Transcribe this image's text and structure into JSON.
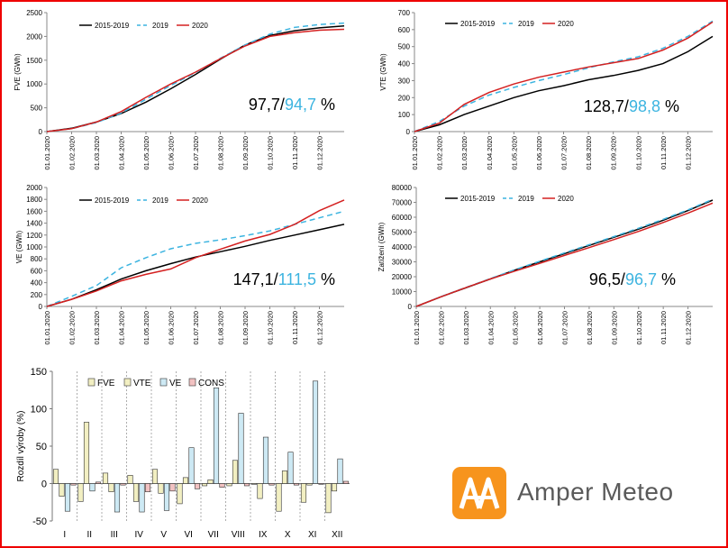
{
  "colors": {
    "base": "#000000",
    "y2019": "#3cb4e0",
    "y2020": "#d42020",
    "frame": "#ee0000",
    "logo_orange": "#f7941d",
    "logo_text": "#5a5a5a"
  },
  "date_ticks": [
    "01.01.2020",
    "01.02.2020",
    "01.03.2020",
    "01.04.2020",
    "01.05.2020",
    "01.06.2020",
    "01.07.2020",
    "01.08.2020",
    "01.09.2020",
    "01.10.2020",
    "01.11.2020",
    "01.12.2020"
  ],
  "legend": {
    "base": "2015-2019",
    "y2019": "2019",
    "y2020": "2020"
  },
  "logo": {
    "name": "Amper Meteo",
    "icon": "amper-meteo-logo-icon"
  },
  "chart_data": [
    {
      "id": "fve",
      "type": "line",
      "ylabel": "FVE (GWh)",
      "ylim": [
        0,
        2500
      ],
      "ystep": 500,
      "x": [
        0,
        1,
        2,
        3,
        4,
        5,
        6,
        7,
        8,
        9,
        10,
        11,
        12
      ],
      "series": [
        {
          "name": "2015-2019",
          "values": [
            0,
            70,
            200,
            380,
            620,
            900,
            1200,
            1520,
            1820,
            2020,
            2120,
            2180,
            2220
          ]
        },
        {
          "name": "2019",
          "values": [
            0,
            60,
            190,
            390,
            680,
            970,
            1240,
            1540,
            1820,
            2050,
            2190,
            2250,
            2280
          ]
        },
        {
          "name": "2020",
          "values": [
            0,
            60,
            200,
            420,
            720,
            1000,
            1250,
            1530,
            1800,
            2000,
            2080,
            2130,
            2150
          ]
        }
      ],
      "annotation": {
        "main": "97,7/",
        "accent": "94,7",
        "suffix": " %"
      }
    },
    {
      "id": "vte",
      "type": "line",
      "ylabel": "VTE (GWh)",
      "ylim": [
        0,
        700
      ],
      "ystep": 100,
      "x": [
        0,
        1,
        2,
        3,
        4,
        5,
        6,
        7,
        8,
        9,
        10,
        11,
        12
      ],
      "series": [
        {
          "name": "2015-2019",
          "values": [
            0,
            40,
            100,
            150,
            200,
            240,
            270,
            305,
            330,
            360,
            400,
            470,
            560
          ]
        },
        {
          "name": "2019",
          "values": [
            0,
            60,
            150,
            215,
            260,
            300,
            335,
            375,
            410,
            440,
            490,
            560,
            650
          ]
        },
        {
          "name": "2020",
          "values": [
            0,
            50,
            160,
            230,
            280,
            320,
            350,
            380,
            405,
            430,
            480,
            550,
            645
          ]
        }
      ],
      "annotation": {
        "main": "128,7/",
        "accent": "98,8",
        "suffix": " %"
      }
    },
    {
      "id": "ve",
      "type": "line",
      "ylabel": "VE (GWh)",
      "ylim": [
        0,
        2000
      ],
      "ystep": 200,
      "x": [
        0,
        1,
        2,
        3,
        4,
        5,
        6,
        7,
        8,
        9,
        10,
        11,
        12
      ],
      "series": [
        {
          "name": "2015-2019",
          "values": [
            0,
            120,
            280,
            460,
            600,
            720,
            830,
            920,
            1010,
            1110,
            1200,
            1290,
            1380
          ]
        },
        {
          "name": "2019",
          "values": [
            0,
            170,
            350,
            650,
            820,
            970,
            1060,
            1120,
            1190,
            1270,
            1380,
            1490,
            1600
          ]
        },
        {
          "name": "2020",
          "values": [
            0,
            120,
            260,
            430,
            540,
            630,
            820,
            960,
            1100,
            1210,
            1380,
            1610,
            1790
          ]
        }
      ],
      "annotation": {
        "main": "147,1/",
        "accent": "111,5",
        "suffix": " %"
      }
    },
    {
      "id": "zatizeni",
      "type": "line",
      "ylabel": "Zatížení (GWh)",
      "ylim": [
        0,
        80000
      ],
      "ystep": 10000,
      "x": [
        0,
        1,
        2,
        3,
        4,
        5,
        6,
        7,
        8,
        9,
        10,
        11,
        12
      ],
      "series": [
        {
          "name": "2015-2019",
          "values": [
            0,
            6500,
            12500,
            18500,
            24500,
            30000,
            35500,
            41000,
            46500,
            52000,
            58000,
            64500,
            71500
          ]
        },
        {
          "name": "2019",
          "values": [
            0,
            6600,
            12700,
            18700,
            24800,
            30400,
            36000,
            41500,
            47000,
            52600,
            58600,
            65000,
            72000
          ]
        },
        {
          "name": "2020",
          "values": [
            0,
            6500,
            12600,
            18500,
            23800,
            29000,
            34300,
            39600,
            45000,
            50500,
            56500,
            62800,
            69500
          ]
        }
      ],
      "annotation": {
        "main": "96,5/",
        "accent": "96,7",
        "suffix": " %"
      }
    },
    {
      "id": "diff",
      "type": "bar",
      "ylabel": "Rozdíl výroby (%)",
      "ylim": [
        -50,
        150
      ],
      "ystep": 50,
      "categories": [
        "I",
        "II",
        "III",
        "IV",
        "V",
        "VI",
        "VII",
        "VIII",
        "IX",
        "X",
        "XI",
        "XII"
      ],
      "series": [
        {
          "name": "FVE",
          "color": "#f2efc2",
          "values": [
            19,
            -24,
            14,
            11,
            19,
            -27,
            -3,
            -3,
            -1,
            -37,
            -25,
            -39
          ]
        },
        {
          "name": "VTE",
          "color": "#f2efc2",
          "values": [
            -17,
            82,
            -11,
            -24,
            -13,
            8,
            5,
            31,
            -20,
            17,
            -2,
            -10
          ]
        },
        {
          "name": "VE",
          "color": "#cde9f4",
          "values": [
            -37,
            -10,
            -38,
            -38,
            -36,
            48,
            128,
            94,
            62,
            42,
            137,
            33
          ]
        },
        {
          "name": "CONS",
          "color": "#f2c2c2",
          "values": [
            -2,
            2,
            -2,
            -11,
            -10,
            -7,
            -5,
            -3,
            -2,
            -2,
            -1,
            3
          ]
        }
      ],
      "legend_labels": [
        "FVE",
        "VTE",
        "VE",
        "CONS"
      ]
    }
  ]
}
